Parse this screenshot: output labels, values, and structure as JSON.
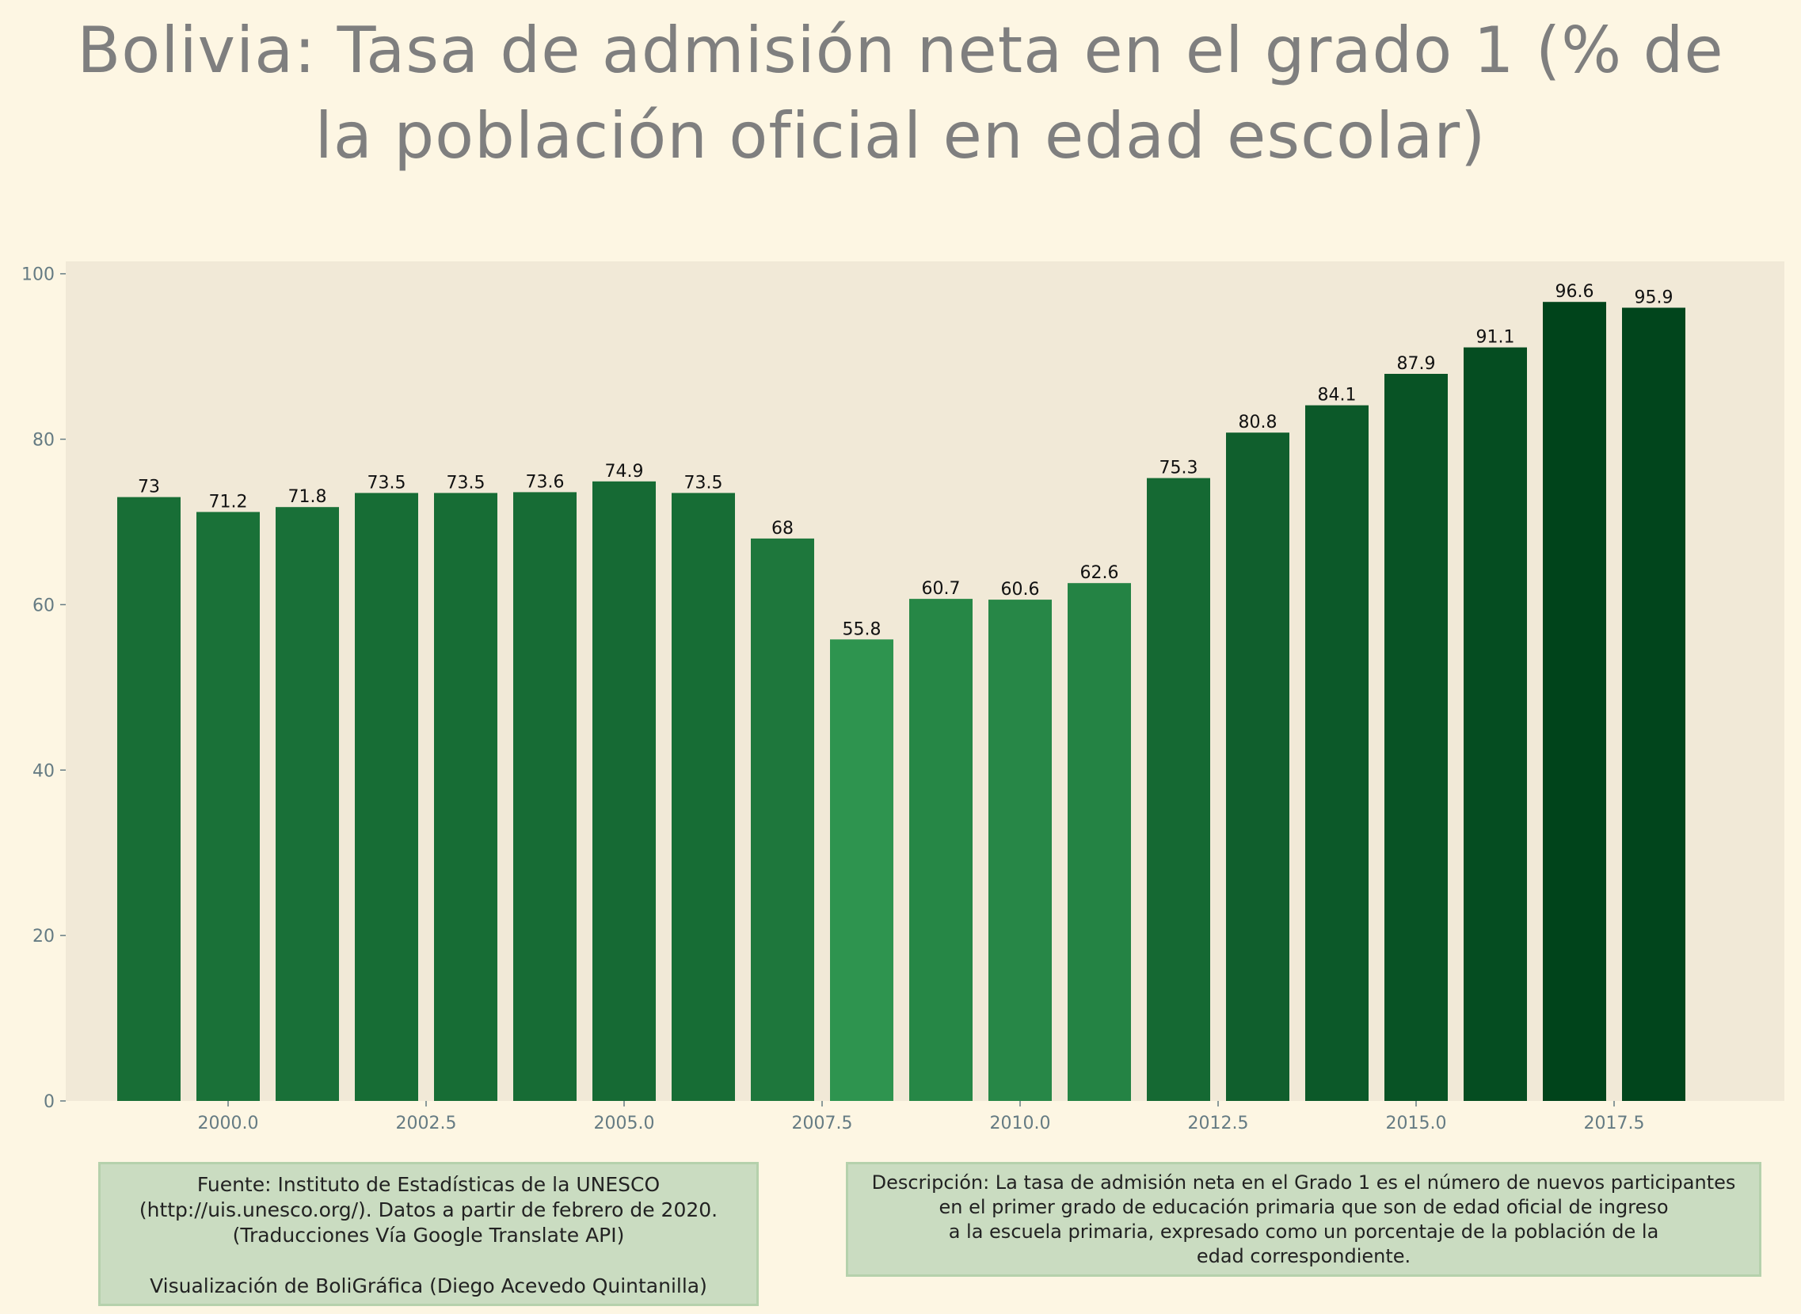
{
  "title_line1": "Bolivia:  Tasa de admisión neta en el grado 1 (% de",
  "title_line2": "la población oficial en edad escolar)",
  "chart_data": {
    "type": "bar",
    "x": [
      1999,
      2000,
      2001,
      2002,
      2003,
      2004,
      2005,
      2006,
      2007,
      2008,
      2009,
      2010,
      2011,
      2012,
      2013,
      2014,
      2015,
      2016,
      2017,
      2018
    ],
    "values": [
      73,
      71.2,
      71.8,
      73.5,
      73.5,
      73.6,
      74.9,
      73.5,
      68,
      55.8,
      60.7,
      60.6,
      62.6,
      75.3,
      80.8,
      84.1,
      87.9,
      91.1,
      96.6,
      95.9
    ],
    "data_labels": [
      "73",
      "71.2",
      "71.8",
      "73.5",
      "73.5",
      "73.6",
      "74.9",
      "73.5",
      "68",
      "55.8",
      "60.7",
      "60.6",
      "62.6",
      "75.3",
      "80.8",
      "84.1",
      "87.9",
      "91.1",
      "96.6",
      "95.9"
    ],
    "xticks": [
      2000.0,
      2002.5,
      2005.0,
      2007.5,
      2010.0,
      2012.5,
      2015.0,
      2017.5
    ],
    "xtick_labels": [
      "2000.0",
      "2002.5",
      "2005.0",
      "2007.5",
      "2010.0",
      "2012.5",
      "2015.0",
      "2017.5"
    ],
    "yticks": [
      0,
      20,
      40,
      60,
      80,
      100
    ],
    "ytick_labels": [
      "0",
      "20",
      "40",
      "60",
      "80",
      "100"
    ],
    "xlim": [
      1997.95,
      2019.65
    ],
    "ylim": [
      0,
      101.5
    ],
    "xlabel": "",
    "ylabel": "",
    "grid": false,
    "colormap": "Greens, shade by value",
    "colors": {
      "plot_background": "#f1e9d7",
      "tick_text": "#657b83",
      "bar_light": "#2e944f",
      "bar_dark": "#00441b",
      "data_label": "#111111"
    }
  },
  "source_note": {
    "line1": "Fuente: Instituto de Estadísticas de la UNESCO",
    "line2": "(http://uis.unesco.org/). Datos a partir de febrero de 2020.",
    "line3": "(Traducciones Vía Google Translate API)",
    "line4": "Visualización de BoliGráfica (Diego Acevedo Quintanilla)"
  },
  "description_note": {
    "line1": "Descripción: La tasa de admisión neta en el Grado 1 es el número de nuevos participantes",
    "line2": "en el primer grado de educación primaria que son de edad oficial de ingreso",
    "line3": "a la escuela primaria, expresado como un porcentaje de la población de la",
    "line4": "edad correspondiente."
  },
  "colors": {
    "page_background": "#fdf6e3",
    "title": "#7f7f7f",
    "note_background": "#cadcc1",
    "note_border": "#b5d1ac"
  }
}
